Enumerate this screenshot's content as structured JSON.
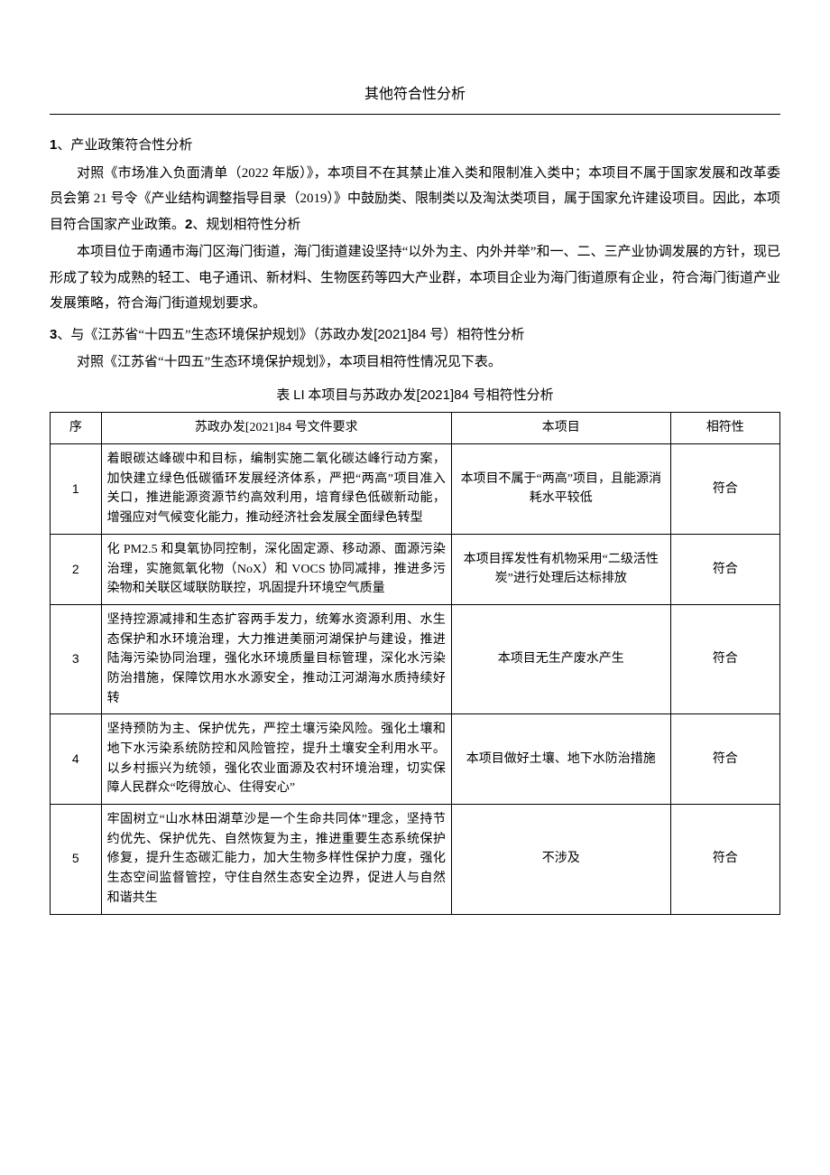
{
  "title": "其他符合性分析",
  "sections": {
    "s1": {
      "num": "1",
      "heading": "、产业政策符合性分析",
      "para": "对照《市场准入负面清单（2022 年版）》，本项目不在其禁止准入类和限制准入类中；本项目不属于国家发展和改革委员会第 21 号令《产业结构调整指导目录（2019）》中鼓励类、限制类以及淘汰类项目，属于国家允许建设项目。因此，本项目符合国家产业政策。",
      "inline_num": "2",
      "inline_heading": "、规划相符性分析"
    },
    "s2": {
      "para": "本项目位于南通市海门区海门街道，海门街道建设坚持“以外为主、内外并举”和一、二、三产业协调发展的方针，现已形成了较为成熟的轻工、电子通讯、新材料、生物医药等四大产业群，本项目企业为海门街道原有企业，符合海门街道产业发展策略，符合海门街道规划要求。"
    },
    "s3": {
      "num": "3",
      "heading_pre": "、与《江苏省“十四五”生态环境保护规划》（苏政办发",
      "doc_code": "[2021]84",
      "heading_post": " 号）相符性分析",
      "para_pre": "对照《江苏省“十四五”生态环境保护规划》，本项目相符性情况见下表。"
    }
  },
  "table": {
    "caption_pre": "表 ",
    "caption_li": "LI",
    "caption_mid": " 本项目与苏政办发",
    "caption_code": "[2021]84",
    "caption_post": " 号相符性分析",
    "headers": {
      "c1": "序",
      "c2": "苏政办发[2021]84 号文件要求",
      "c3": "本项目",
      "c4": "相符性"
    },
    "rows": [
      {
        "idx": "1",
        "req": "着眼碳达峰碳中和目标，编制实施二氧化碳达峰行动方案，加快建立绿色低碳循环发展经济体系，严把“两高”项目准入关口，推进能源资源节约高效利用，培育绿色低碳新动能，增强应对气候变化能力，推动经济社会发展全面绿色转型",
        "proj": "本项目不属于“两高”项目，且能源消耗水平较低",
        "comp": "符合"
      },
      {
        "idx": "2",
        "req": "化 PM2.5 和臭氧协同控制，深化固定源、移动源、面源污染治理，实施氮氧化物（NoX）和 VOCS 协同减排，推进多污染物和关联区域联防联控，巩固提升环境空气质量",
        "proj": "本项目挥发性有机物采用“二级活性炭”进行处理后达标排放",
        "comp": "符合"
      },
      {
        "idx": "3",
        "req": "坚持控源减排和生态扩容两手发力，统筹水资源利用、水生态保护和水环境治理，大力推进美丽河湖保护与建设，推进陆海污染协同治理，强化水环境质量目标管理，深化水污染防治措施，保障饮用水水源安全，推动江河湖海水质持续好转",
        "proj": "本项目无生产废水产生",
        "comp": "符合"
      },
      {
        "idx": "4",
        "req": "坚持预防为主、保护优先，严控土壤污染风险。强化土壤和地下水污染系统防控和风险管控，提升土壤安全利用水平。以乡村振兴为统领，强化农业面源及农村环境治理，切实保障人民群众“吃得放心、住得安心”",
        "proj": "本项目做好土壤、地下水防治措施",
        "comp": "符合"
      },
      {
        "idx": "5",
        "req": "牢固树立“山水林田湖草沙是一个生命共同体”理念，坚持节约优先、保护优先、自然恢复为主，推进重要生态系统保护修复，提升生态碳汇能力，加大生物多样性保护力度，强化生态空间监督管控，守住自然生态安全边界，促进人与自然和谐共生",
        "proj": "不涉及",
        "comp": "符合"
      }
    ]
  }
}
